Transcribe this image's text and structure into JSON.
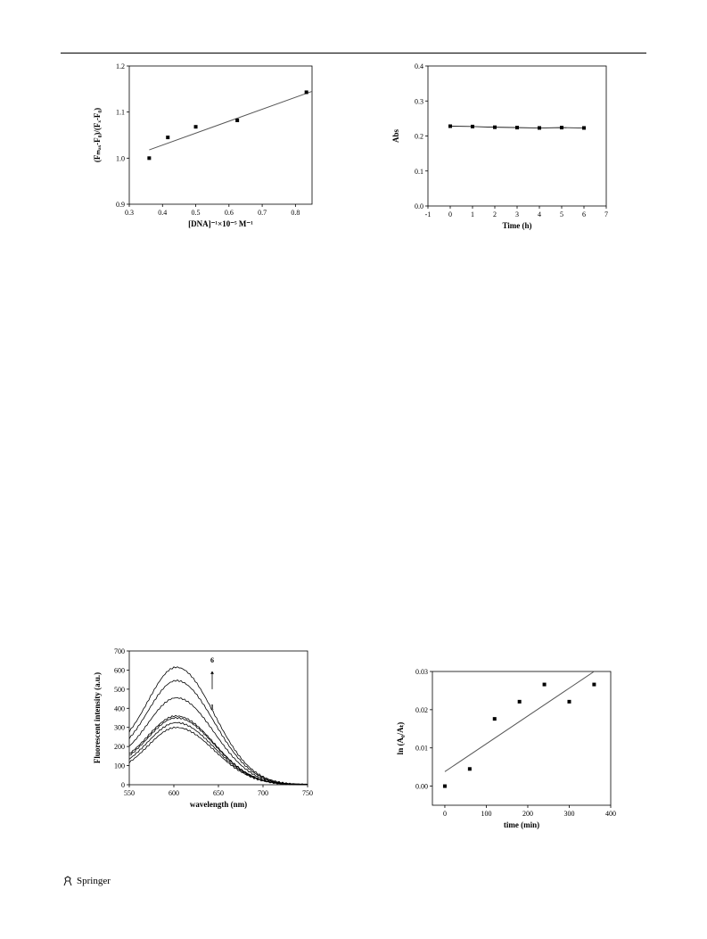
{
  "footer": {
    "publisher": "Springer",
    "logo_icon": "springer-horse-icon"
  },
  "chart_data": [
    {
      "id": "fig-tl",
      "type": "scatter",
      "xlabel": "[DNA]⁻¹×10⁻⁵ M⁻¹",
      "ylabel": "(Fₘₐₓ-F₀)/(Fₓ-F₀)",
      "xlim": [
        0.3,
        0.85
      ],
      "ylim": [
        0.9,
        1.2
      ],
      "xticks": [
        "0.3",
        "0.4",
        "0.5",
        "0.6",
        "0.7",
        "0.8"
      ],
      "yticks": [
        "0.9",
        "1.0",
        "1.1",
        "1.2"
      ],
      "points": [
        [
          0.36,
          1.0
        ],
        [
          0.416,
          1.045
        ],
        [
          0.5,
          1.068
        ],
        [
          0.625,
          1.082
        ],
        [
          0.833,
          1.143
        ]
      ],
      "fit_line": [
        [
          0.36,
          1.018
        ],
        [
          0.85,
          1.145
        ]
      ]
    },
    {
      "id": "fig-tr",
      "type": "line",
      "xlabel": "Time (h)",
      "ylabel": "Abs",
      "xlim": [
        -1,
        7
      ],
      "ylim": [
        0.0,
        0.4
      ],
      "xticks": [
        "-1",
        "0",
        "1",
        "2",
        "3",
        "4",
        "5",
        "6",
        "7"
      ],
      "yticks": [
        "0.0",
        "0.1",
        "0.2",
        "0.3",
        "0.4"
      ],
      "points": [
        [
          0,
          0.228
        ],
        [
          1,
          0.227
        ],
        [
          2,
          0.225
        ],
        [
          3,
          0.224
        ],
        [
          4,
          0.223
        ],
        [
          5,
          0.224
        ],
        [
          6,
          0.223
        ]
      ]
    },
    {
      "id": "fig-bl",
      "type": "line",
      "xlabel": "wavelength (nm)",
      "ylabel": "Fluorescent intensity (a.u.)",
      "xlim": [
        550,
        750
      ],
      "ylim": [
        0,
        700
      ],
      "xticks": [
        "550",
        "600",
        "650",
        "700",
        "750"
      ],
      "yticks": [
        "0",
        "100",
        "200",
        "300",
        "400",
        "500",
        "600",
        "700"
      ],
      "annotations": [
        "6",
        "1"
      ],
      "series": [
        {
          "peak": 300,
          "base": 55
        },
        {
          "peak": 325,
          "base": 70
        },
        {
          "peak": 350,
          "base": 85
        },
        {
          "peak": 360,
          "base": 95
        },
        {
          "peak": 455,
          "base": 115
        },
        {
          "peak": 545,
          "base": 140
        },
        {
          "peak": 615,
          "base": 165
        }
      ]
    },
    {
      "id": "fig-br",
      "type": "scatter",
      "xlabel": "time (min)",
      "ylabel": "ln (A₀/Aₜ)",
      "xlim": [
        -30,
        400
      ],
      "ylim": [
        -0.005,
        0.03
      ],
      "xticks": [
        "0",
        "100",
        "200",
        "300",
        "400"
      ],
      "yticks": [
        "0.00",
        "0.01",
        "0.02",
        "0.03"
      ],
      "points": [
        [
          0,
          0.0
        ],
        [
          60,
          0.0045
        ],
        [
          120,
          0.0176
        ],
        [
          180,
          0.0221
        ],
        [
          240,
          0.0266
        ],
        [
          300,
          0.0221
        ],
        [
          360,
          0.0266
        ]
      ],
      "fit_line": [
        [
          0,
          0.0038
        ],
        [
          360,
          0.03
        ]
      ]
    }
  ]
}
